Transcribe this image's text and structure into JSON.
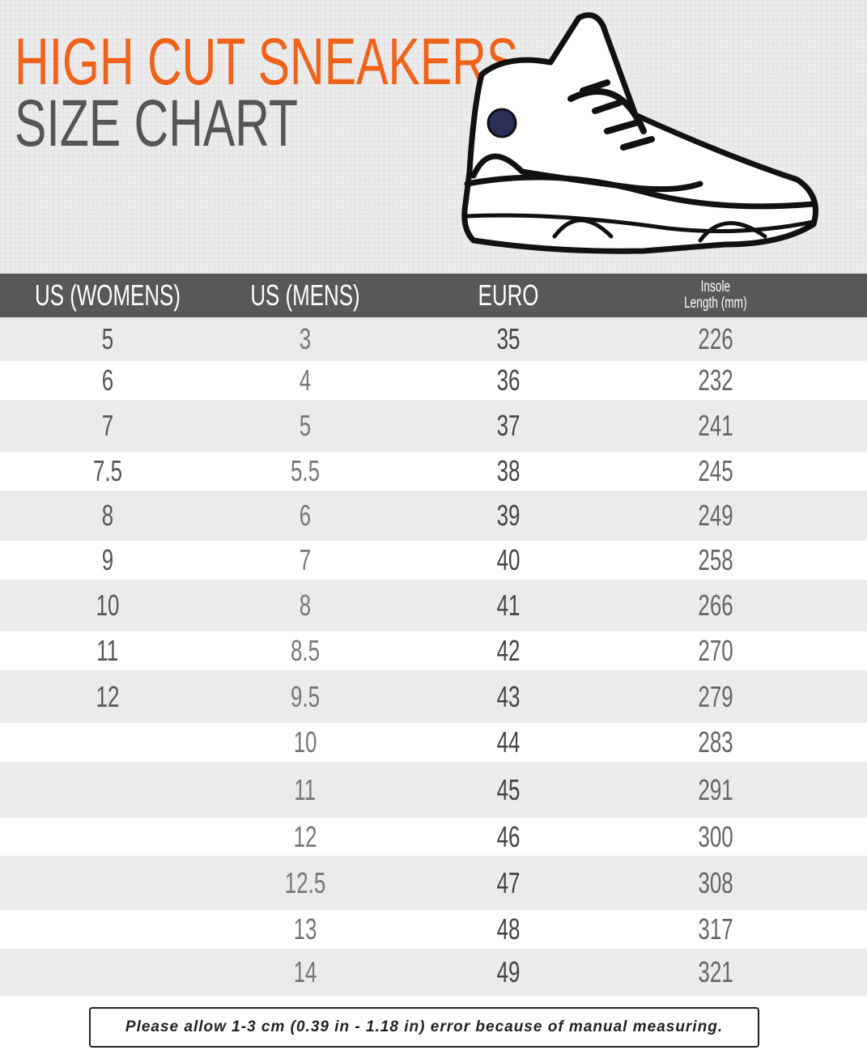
{
  "title": {
    "line1": "HIGH CUT SNEAKERS",
    "line2": "SIZE CHART"
  },
  "colors": {
    "accent": "#f0621a",
    "header_bg": "#585858",
    "row_gray": "#ebebeb"
  },
  "headers": {
    "us_womens": "US (WOMENS)",
    "us_mens": "US (MENS)",
    "euro": "EURO",
    "insole_line1": "Insole",
    "insole_line2": "Length (mm)"
  },
  "rows": [
    {
      "w": "5",
      "m": "3",
      "eu": "35",
      "mm": "226"
    },
    {
      "w": "6",
      "m": "4",
      "eu": "36",
      "mm": "232"
    },
    {
      "w": "7",
      "m": "5",
      "eu": "37",
      "mm": "241"
    },
    {
      "w": "7.5",
      "m": "5.5",
      "eu": "38",
      "mm": "245"
    },
    {
      "w": "8",
      "m": "6",
      "eu": "39",
      "mm": "249"
    },
    {
      "w": "9",
      "m": "7",
      "eu": "40",
      "mm": "258"
    },
    {
      "w": "10",
      "m": "8",
      "eu": "41",
      "mm": "266"
    },
    {
      "w": "11",
      "m": "8.5",
      "eu": "42",
      "mm": "270"
    },
    {
      "w": "12",
      "m": "9.5",
      "eu": "43",
      "mm": "279"
    },
    {
      "w": "",
      "m": "10",
      "eu": "44",
      "mm": "283"
    },
    {
      "w": "",
      "m": "11",
      "eu": "45",
      "mm": "291"
    },
    {
      "w": "",
      "m": "12",
      "eu": "46",
      "mm": "300"
    },
    {
      "w": "",
      "m": "12.5",
      "eu": "47",
      "mm": "308"
    },
    {
      "w": "",
      "m": "13",
      "eu": "48",
      "mm": "317"
    },
    {
      "w": "",
      "m": "14",
      "eu": "49",
      "mm": "321"
    }
  ],
  "note": "Please allow 1-3 cm (0.39 in - 1.18 in) error because of manual measuring.",
  "illustration": "high-top-sneaker-outline"
}
